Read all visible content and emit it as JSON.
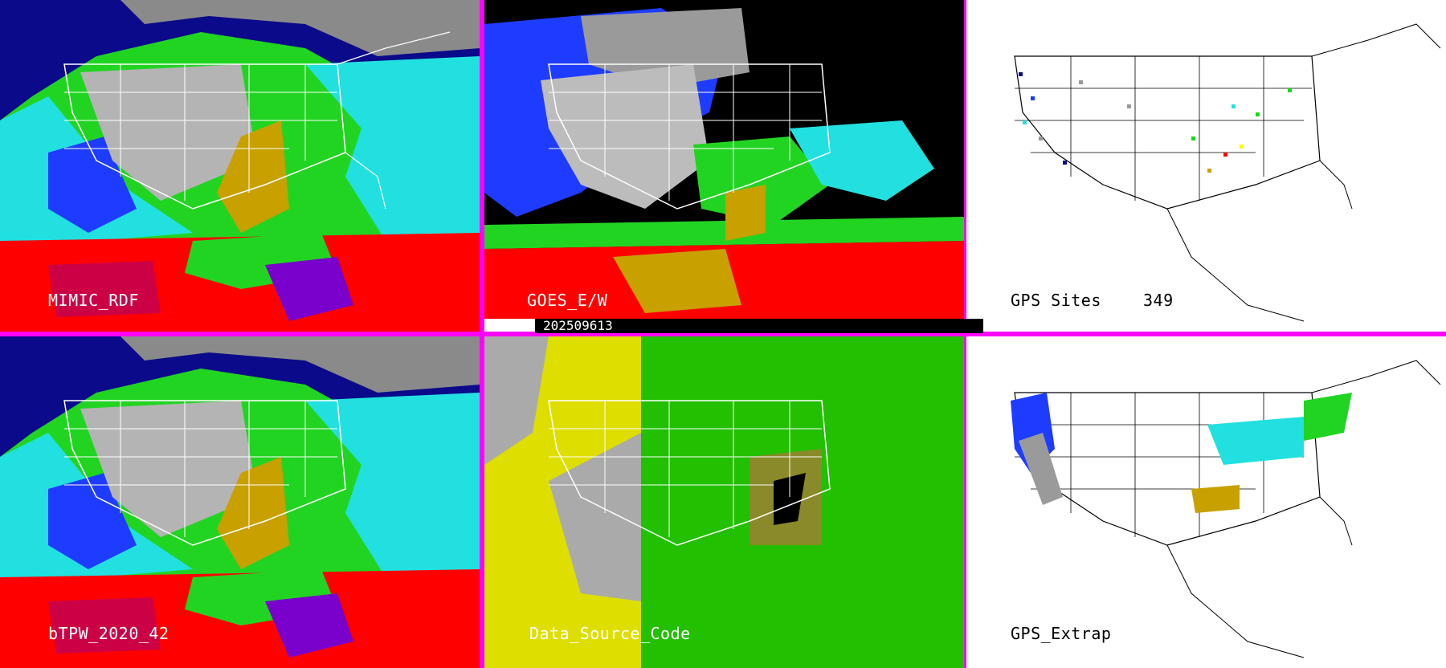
{
  "panels": {
    "mimic": {
      "label": "MIMIC_RDF"
    },
    "goes": {
      "label": "GOES_E/W"
    },
    "gps_sites": {
      "label": "GPS Sites",
      "count": "349"
    },
    "btpw": {
      "label": "bTPW_2020_42"
    },
    "data_source": {
      "label": "Data_Source_Code"
    },
    "gps_extrap": {
      "label": "GPS_Extrap"
    }
  },
  "timestamp": "202509613",
  "colors": {
    "divider": "#ff00ff",
    "tpw_scale": [
      "#ffffff",
      "#9a9a9a",
      "#0a0a8a",
      "#1e3cff",
      "#22e0e0",
      "#22d422",
      "#c8a000",
      "#ffff00",
      "#ff0000",
      "#cc0044",
      "#7a00cc"
    ],
    "data_source_scale": [
      "#aaaaaa",
      "#ffff00",
      "#22d422",
      "#8a8a2a",
      "#000000"
    ]
  }
}
